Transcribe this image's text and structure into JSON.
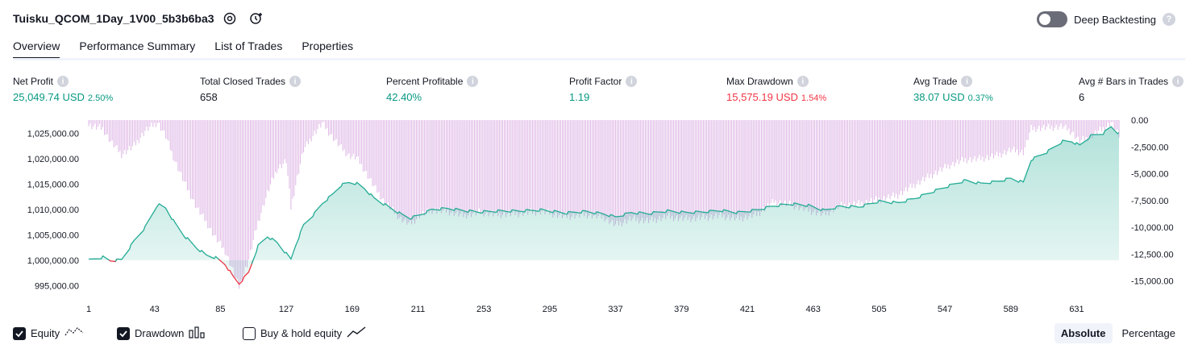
{
  "header": {
    "title": "Tuisku_QCOM_1Day_1V00_5b3b6ba3",
    "settings_icon": "settings-icon",
    "alert_icon": "add-alert-icon",
    "deep_backtesting_label": "Deep Backtesting",
    "help_icon": "question-icon"
  },
  "tabs": [
    {
      "label": "Overview",
      "active": true
    },
    {
      "label": "Performance Summary",
      "active": false
    },
    {
      "label": "List of Trades",
      "active": false
    },
    {
      "label": "Properties",
      "active": false
    }
  ],
  "stats": [
    {
      "label": "Net Profit",
      "value": "25,049.74 USD",
      "pct": "2.50%",
      "color": "#089981"
    },
    {
      "label": "Total Closed Trades",
      "value": "658",
      "pct": "",
      "color": "#131722"
    },
    {
      "label": "Percent Profitable",
      "value": "42.40%",
      "pct": "",
      "color": "#089981"
    },
    {
      "label": "Profit Factor",
      "value": "1.19",
      "pct": "",
      "color": "#089981"
    },
    {
      "label": "Max Drawdown",
      "value": "15,575.19 USD",
      "pct": "1.54%",
      "color": "#f23645"
    },
    {
      "label": "Avg Trade",
      "value": "38.07 USD",
      "pct": "0.37%",
      "color": "#089981"
    },
    {
      "label": "Avg # Bars in Trades",
      "value": "6",
      "pct": "",
      "color": "#131722"
    }
  ],
  "chart_data": {
    "type": "area",
    "x_ticks": [
      "1",
      "43",
      "85",
      "127",
      "169",
      "211",
      "253",
      "295",
      "337",
      "379",
      "421",
      "463",
      "505",
      "547",
      "589",
      "631"
    ],
    "x_range": [
      1,
      658
    ],
    "y_left_ticks": [
      "1,025,000.00",
      "1,020,000.00",
      "1,015,000.00",
      "1,010,000.00",
      "1,005,000.00",
      "1,000,000.00",
      "995,000.00"
    ],
    "y_left_range": [
      993800,
      1027600
    ],
    "y_right_ticks": [
      "0.00",
      "-2,500.00",
      "-5,000.00",
      "-7,500.00",
      "-10,000.00",
      "-12,500.00",
      "-15,000.00"
    ],
    "y_right_range": [
      -16000,
      0
    ],
    "baseline": 1000000,
    "series": [
      {
        "name": "Equity",
        "color": "#22ab94",
        "negative_color": "#f23645",
        "points": [
          [
            1,
            1000000
          ],
          [
            10,
            1000600
          ],
          [
            15,
            999900
          ],
          [
            22,
            1000100
          ],
          [
            30,
            1003800
          ],
          [
            37,
            1006500
          ],
          [
            45,
            1011000
          ],
          [
            50,
            1010300
          ],
          [
            56,
            1007300
          ],
          [
            62,
            1004800
          ],
          [
            70,
            1002400
          ],
          [
            76,
            1001000
          ],
          [
            82,
            1000500
          ],
          [
            88,
            999200
          ],
          [
            93,
            996800
          ],
          [
            97,
            995400
          ],
          [
            103,
            997600
          ],
          [
            109,
            1002800
          ],
          [
            115,
            1004700
          ],
          [
            121,
            1003500
          ],
          [
            127,
            1001300
          ],
          [
            130,
            1000200
          ],
          [
            133,
            1003000
          ],
          [
            138,
            1006900
          ],
          [
            145,
            1009200
          ],
          [
            150,
            1011200
          ],
          [
            156,
            1012800
          ],
          [
            162,
            1014800
          ],
          [
            167,
            1015300
          ],
          [
            172,
            1015100
          ],
          [
            177,
            1014100
          ],
          [
            183,
            1012200
          ],
          [
            189,
            1011100
          ],
          [
            194,
            1010200
          ],
          [
            200,
            1009100
          ],
          [
            206,
            1008300
          ],
          [
            212,
            1008900
          ],
          [
            220,
            1010000
          ],
          [
            230,
            1010200
          ],
          [
            240,
            1009800
          ],
          [
            250,
            1009500
          ],
          [
            262,
            1009700
          ],
          [
            275,
            1009700
          ],
          [
            290,
            1009900
          ],
          [
            305,
            1009300
          ],
          [
            318,
            1009600
          ],
          [
            330,
            1009100
          ],
          [
            337,
            1008500
          ],
          [
            347,
            1009400
          ],
          [
            358,
            1009200
          ],
          [
            370,
            1009700
          ],
          [
            381,
            1009400
          ],
          [
            392,
            1009500
          ],
          [
            404,
            1009800
          ],
          [
            415,
            1009400
          ],
          [
            427,
            1009900
          ],
          [
            438,
            1010700
          ],
          [
            449,
            1011100
          ],
          [
            460,
            1010800
          ],
          [
            470,
            1009800
          ],
          [
            480,
            1010600
          ],
          [
            492,
            1010500
          ],
          [
            505,
            1011600
          ],
          [
            517,
            1011300
          ],
          [
            528,
            1012200
          ],
          [
            540,
            1013600
          ],
          [
            550,
            1014700
          ],
          [
            560,
            1015700
          ],
          [
            570,
            1015100
          ],
          [
            580,
            1015500
          ],
          [
            589,
            1016100
          ],
          [
            597,
            1015300
          ],
          [
            602,
            1019800
          ],
          [
            612,
            1021300
          ],
          [
            622,
            1023400
          ],
          [
            628,
            1023400
          ],
          [
            633,
            1022600
          ],
          [
            640,
            1024500
          ],
          [
            648,
            1025000
          ],
          [
            653,
            1026300
          ],
          [
            658,
            1024900
          ]
        ]
      },
      {
        "name": "Drawdown",
        "color": "#ce93d8",
        "points": [
          [
            1,
            -500
          ],
          [
            10,
            -800
          ],
          [
            15,
            -2000
          ],
          [
            22,
            -3200
          ],
          [
            30,
            -2400
          ],
          [
            37,
            -1000
          ],
          [
            45,
            -200
          ],
          [
            50,
            -1500
          ],
          [
            56,
            -3800
          ],
          [
            62,
            -5800
          ],
          [
            70,
            -8200
          ],
          [
            76,
            -9500
          ],
          [
            82,
            -11000
          ],
          [
            88,
            -12200
          ],
          [
            93,
            -14000
          ],
          [
            97,
            -15575
          ],
          [
            103,
            -13000
          ],
          [
            109,
            -9500
          ],
          [
            115,
            -6800
          ],
          [
            121,
            -4600
          ],
          [
            127,
            -3800
          ],
          [
            130,
            -8200
          ],
          [
            133,
            -6000
          ],
          [
            138,
            -2800
          ],
          [
            145,
            -1200
          ],
          [
            150,
            -300
          ],
          [
            156,
            -1500
          ],
          [
            162,
            -2600
          ],
          [
            167,
            -3300
          ],
          [
            172,
            -3500
          ],
          [
            177,
            -4700
          ],
          [
            183,
            -6200
          ],
          [
            189,
            -7500
          ],
          [
            194,
            -8300
          ],
          [
            200,
            -9200
          ],
          [
            206,
            -9700
          ],
          [
            212,
            -8900
          ],
          [
            220,
            -8400
          ],
          [
            230,
            -8500
          ],
          [
            240,
            -8900
          ],
          [
            250,
            -8600
          ],
          [
            262,
            -8800
          ],
          [
            275,
            -8700
          ],
          [
            290,
            -8500
          ],
          [
            305,
            -9000
          ],
          [
            318,
            -8800
          ],
          [
            330,
            -9100
          ],
          [
            337,
            -9800
          ],
          [
            347,
            -9200
          ],
          [
            358,
            -9400
          ],
          [
            370,
            -9000
          ],
          [
            381,
            -9200
          ],
          [
            392,
            -9100
          ],
          [
            404,
            -8900
          ],
          [
            415,
            -9200
          ],
          [
            427,
            -8800
          ],
          [
            438,
            -7600
          ],
          [
            449,
            -7900
          ],
          [
            460,
            -8400
          ],
          [
            470,
            -8800
          ],
          [
            480,
            -8000
          ],
          [
            492,
            -7800
          ],
          [
            505,
            -7400
          ],
          [
            517,
            -7000
          ],
          [
            528,
            -6000
          ],
          [
            540,
            -5000
          ],
          [
            550,
            -4200
          ],
          [
            560,
            -3700
          ],
          [
            570,
            -3600
          ],
          [
            580,
            -3300
          ],
          [
            589,
            -2800
          ],
          [
            597,
            -3000
          ],
          [
            602,
            -800
          ],
          [
            612,
            -700
          ],
          [
            622,
            -600
          ],
          [
            628,
            -1100
          ],
          [
            633,
            -2000
          ],
          [
            640,
            -1500
          ],
          [
            648,
            -800
          ],
          [
            653,
            -200
          ],
          [
            658,
            -1500
          ]
        ]
      }
    ],
    "legend_position": "bottom-left"
  },
  "legend": [
    {
      "label": "Equity",
      "checked": true,
      "icon": "equity-line-icon"
    },
    {
      "label": "Drawdown",
      "checked": true,
      "icon": "drawdown-bars-icon"
    },
    {
      "label": "Buy & hold equity",
      "checked": false,
      "icon": "buy-hold-line-icon"
    }
  ],
  "mode": {
    "absolute": "Absolute",
    "percentage": "Percentage",
    "selected": "Absolute"
  }
}
